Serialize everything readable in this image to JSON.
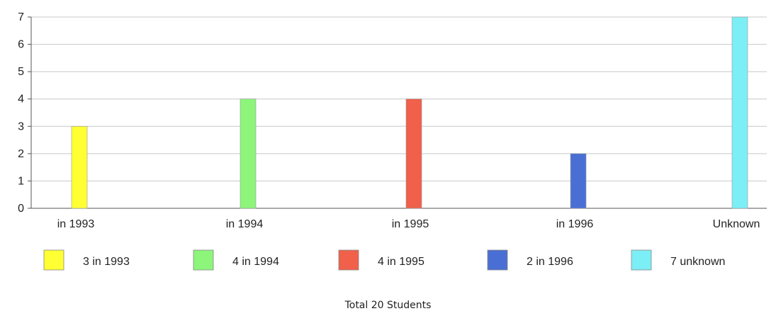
{
  "chart_data": {
    "type": "bar",
    "categories": [
      "in 1993",
      "in 1994",
      "in 1995",
      "in 1996",
      "Unknown"
    ],
    "values": [
      3,
      4,
      4,
      2,
      7
    ],
    "colors": [
      "#ffff33",
      "#8cf57a",
      "#f0604a",
      "#4a6fd4",
      "#7ceef5"
    ],
    "ylim": [
      0,
      7
    ],
    "yticks": [
      0,
      1,
      2,
      3,
      4,
      5,
      6,
      7
    ],
    "grid": true,
    "legend": {
      "placement": "bottom",
      "entries": [
        "3 in 1993",
        "4 in 1994",
        "4 in 1995",
        "2 in 1996",
        "7 unknown"
      ]
    },
    "footnote": "Total 20 Students"
  }
}
